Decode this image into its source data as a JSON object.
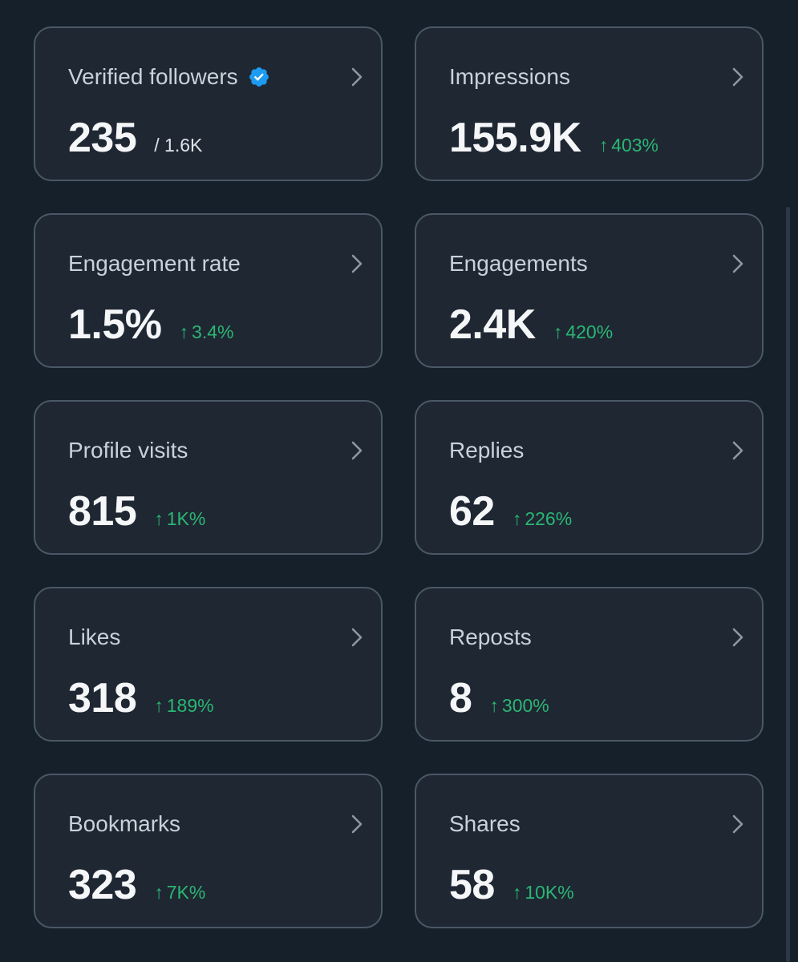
{
  "cards": [
    {
      "title": "Verified followers",
      "value": "235",
      "total": "/ 1.6K"
    },
    {
      "title": "Impressions",
      "value": "155.9K",
      "change": "403%"
    },
    {
      "title": "Engagement rate",
      "value": "1.5%",
      "change": "3.4%"
    },
    {
      "title": "Engagements",
      "value": "2.4K",
      "change": "420%"
    },
    {
      "title": "Profile visits",
      "value": "815",
      "change": "1K%"
    },
    {
      "title": "Replies",
      "value": "62",
      "change": "226%"
    },
    {
      "title": "Likes",
      "value": "318",
      "change": "189%"
    },
    {
      "title": "Reposts",
      "value": "8",
      "change": "300%"
    },
    {
      "title": "Bookmarks",
      "value": "323",
      "change": "7K%"
    },
    {
      "title": "Shares",
      "value": "58",
      "change": "10K%"
    }
  ],
  "icons": {
    "verified": "verified-badge-icon",
    "chevron": "chevron-right-icon",
    "arrow": "arrow-up-icon"
  },
  "colors": {
    "background": "#15202b",
    "card": "#1f2733",
    "border": "#4a5866",
    "positive": "#2bb673",
    "verified": "#1d9bf0"
  }
}
